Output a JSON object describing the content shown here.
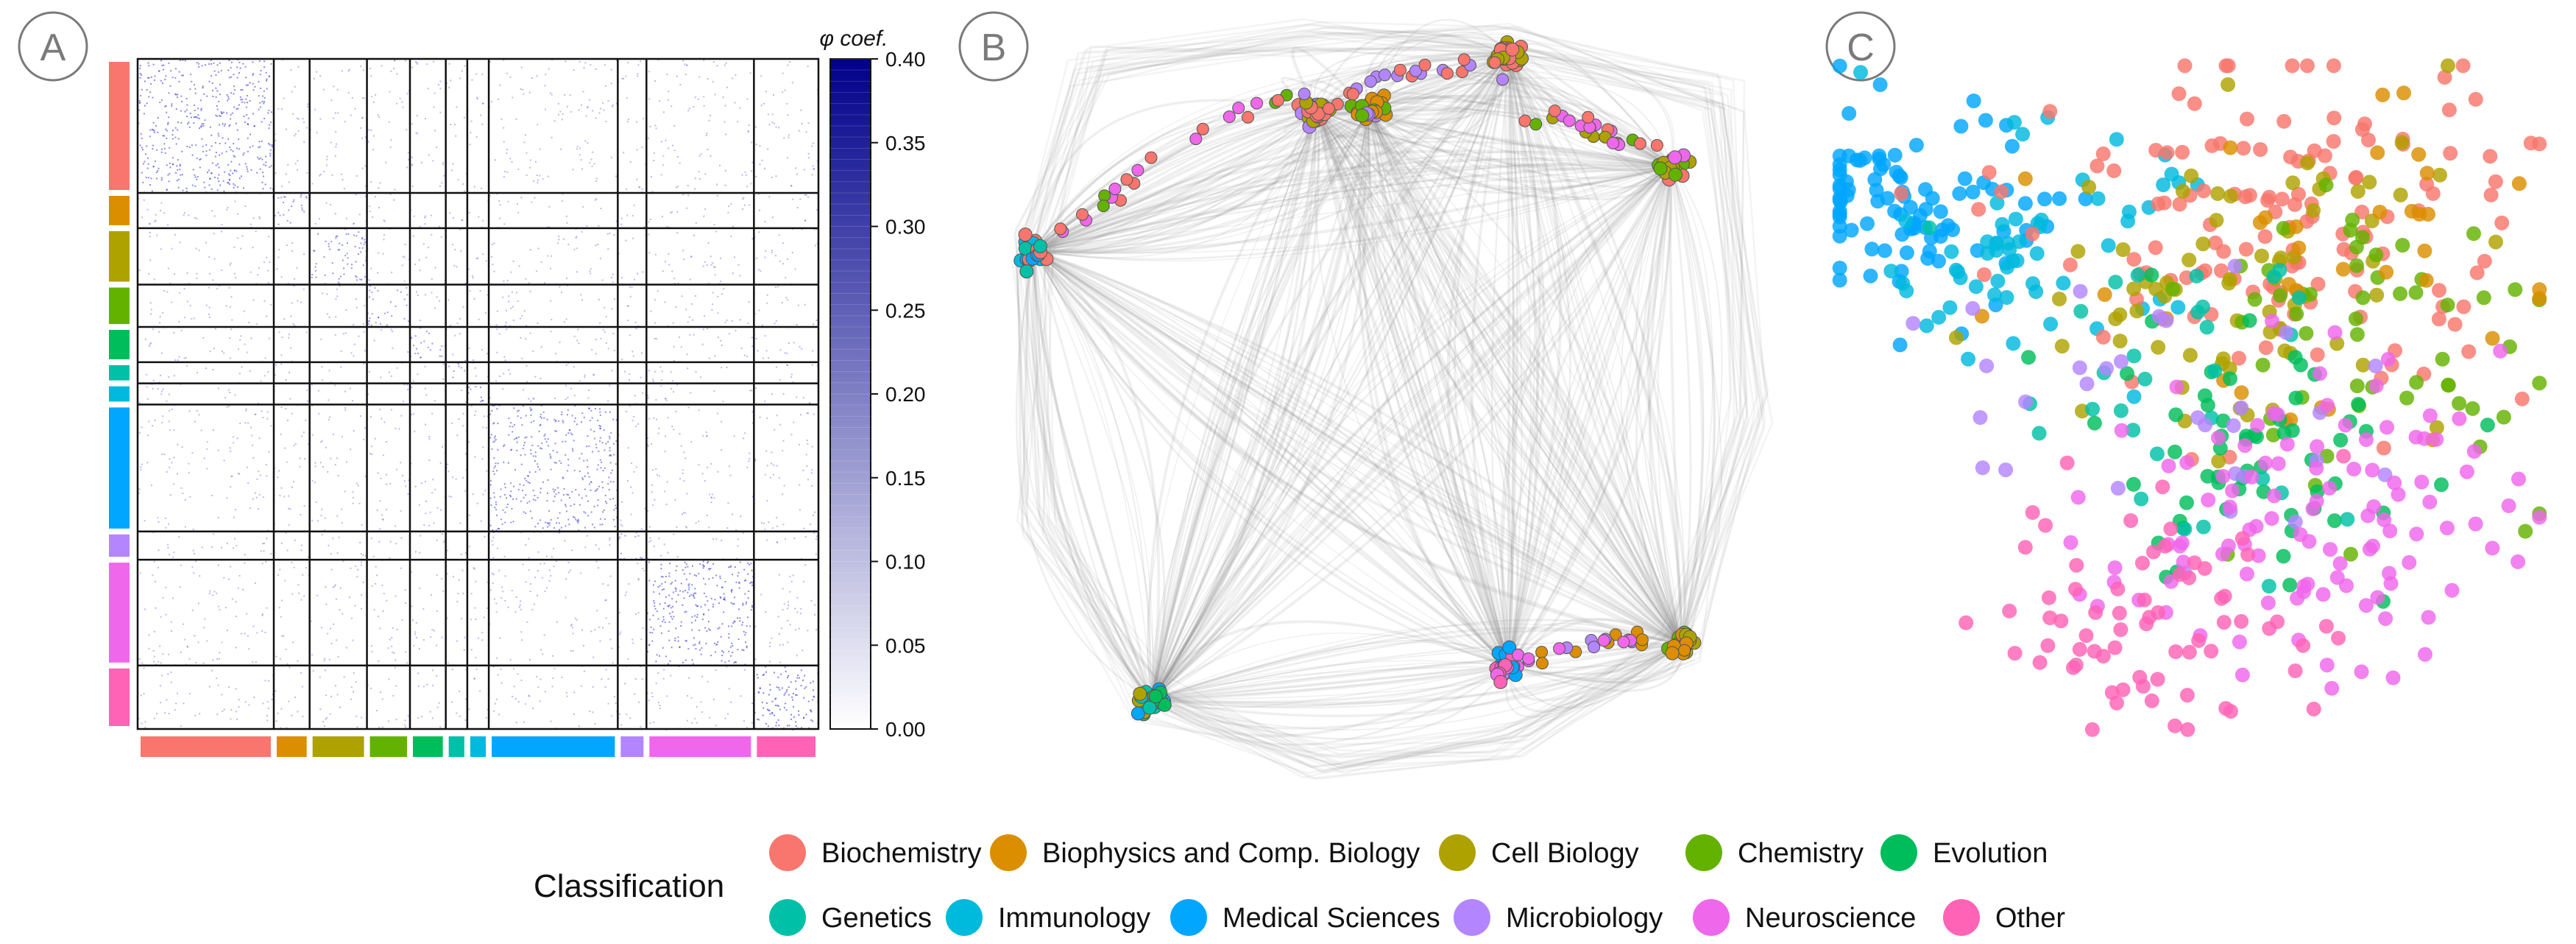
{
  "figure": {
    "panels": [
      "A",
      "B",
      "C"
    ]
  },
  "legend": {
    "title": "Classification",
    "items": [
      {
        "label": "Biochemistry",
        "color": "#F8766D"
      },
      {
        "label": "Biophysics and Comp. Biology",
        "color": "#DB8E00"
      },
      {
        "label": "Cell Biology",
        "color": "#AEA200"
      },
      {
        "label": "Chemistry",
        "color": "#64B200"
      },
      {
        "label": "Evolution",
        "color": "#00BD5C"
      },
      {
        "label": "Genetics",
        "color": "#00C1A7"
      },
      {
        "label": "Immunology",
        "color": "#00BADE"
      },
      {
        "label": "Medical Sciences",
        "color": "#00A6FF"
      },
      {
        "label": "Microbiology",
        "color": "#B385FF"
      },
      {
        "label": "Neuroscience",
        "color": "#EF67EB"
      },
      {
        "label": "Other",
        "color": "#FF63B6"
      }
    ]
  },
  "chart_data": [
    {
      "type": "heatmap",
      "panel": "A",
      "colorbar_title": "φ coef.",
      "colorbar_range": [
        0.0,
        0.4
      ],
      "colorbar_ticks": [
        "0.40",
        "0.35",
        "0.30",
        "0.25",
        "0.20",
        "0.15",
        "0.10",
        "0.05",
        "0.00"
      ],
      "colorbar_colors": [
        "#ffffff",
        "#00008B"
      ],
      "categories": [
        "Biochemistry",
        "Biophysics and Comp. Biology",
        "Cell Biology",
        "Chemistry",
        "Evolution",
        "Genetics",
        "Immunology",
        "Medical Sciences",
        "Microbiology",
        "Neuroscience",
        "Other"
      ],
      "category_weights": [
        19,
        5,
        8,
        6,
        5,
        3,
        3,
        18,
        4,
        15,
        9
      ],
      "within_block_intensity": [
        0.12,
        0.09,
        0.1,
        0.08,
        0.09,
        0.08,
        0.1,
        0.11,
        0.08,
        0.12,
        0.13
      ],
      "between_block_intensity": 0.03
    },
    {
      "type": "network",
      "panel": "B",
      "description_nodes": "clustered nodes colored by classification connected by bundled grey edges",
      "cluster_composition": [
        [
          "Biochemistry",
          "Medical Sciences",
          "Immunology",
          "Genetics"
        ],
        [
          "Biochemistry",
          "Microbiology",
          "Cell Biology"
        ],
        [
          "Biochemistry",
          "Cell Biology"
        ],
        [
          "Biochemistry",
          "Chemistry",
          "Cell Biology",
          "Neuroscience"
        ],
        [
          "Cell Biology",
          "Chemistry",
          "Biophysics and Comp. Biology"
        ],
        [
          "Neuroscience",
          "Other",
          "Microbiology",
          "Medical Sciences"
        ],
        [
          "Medical Sciences",
          "Evolution",
          "Genetics",
          "Cell Biology"
        ],
        [
          "Cell Biology",
          "Chemistry",
          "Biophysics and Comp. Biology",
          "Microbiology"
        ]
      ]
    },
    {
      "type": "scatter",
      "panel": "C",
      "description_points": "2-D embedding of papers colored by classification; no axes",
      "groups": [
        {
          "name": "Medical Sciences",
          "center": [
            -0.75,
            0.55
          ],
          "spread": 0.18,
          "n": 95
        },
        {
          "name": "Immunology",
          "center": [
            -0.45,
            0.45
          ],
          "spread": 0.2,
          "n": 60
        },
        {
          "name": "Biochemistry",
          "center": [
            0.25,
            0.5
          ],
          "spread": 0.35,
          "n": 140
        },
        {
          "name": "Cell Biology",
          "center": [
            0.15,
            0.35
          ],
          "spread": 0.3,
          "n": 70
        },
        {
          "name": "Chemistry",
          "center": [
            0.5,
            0.2
          ],
          "spread": 0.3,
          "n": 55
        },
        {
          "name": "Biophysics and Comp. Biology",
          "center": [
            0.4,
            0.35
          ],
          "spread": 0.35,
          "n": 35
        },
        {
          "name": "Evolution",
          "center": [
            0.15,
            -0.15
          ],
          "spread": 0.25,
          "n": 60
        },
        {
          "name": "Genetics",
          "center": [
            -0.1,
            -0.05
          ],
          "spread": 0.3,
          "n": 30
        },
        {
          "name": "Microbiology",
          "center": [
            -0.05,
            -0.05
          ],
          "spread": 0.3,
          "n": 30
        },
        {
          "name": "Neuroscience",
          "center": [
            0.3,
            -0.35
          ],
          "spread": 0.28,
          "n": 110
        },
        {
          "name": "Other",
          "center": [
            -0.05,
            -0.65
          ],
          "spread": 0.25,
          "n": 70
        }
      ]
    }
  ]
}
